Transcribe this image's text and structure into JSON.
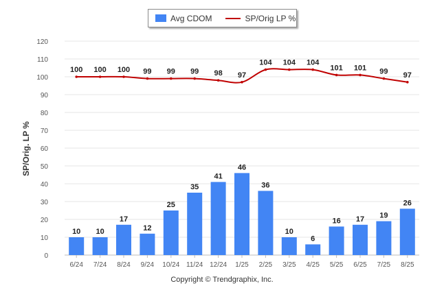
{
  "chart_data": {
    "type": "bar",
    "categories": [
      "6/24",
      "7/24",
      "8/24",
      "9/24",
      "10/24",
      "11/24",
      "12/24",
      "1/25",
      "2/25",
      "3/25",
      "4/25",
      "5/25",
      "6/25",
      "7/25",
      "8/25"
    ],
    "series": [
      {
        "name": "Avg CDOM",
        "kind": "bar",
        "color": "#4285f4",
        "values": [
          10,
          10,
          17,
          12,
          25,
          35,
          41,
          46,
          36,
          10,
          6,
          16,
          17,
          19,
          26
        ]
      },
      {
        "name": "SP/Orig LP %",
        "kind": "line",
        "color": "#c00000",
        "values": [
          100,
          100,
          100,
          99,
          99,
          99,
          98,
          97,
          104,
          104,
          104,
          101,
          101,
          99,
          97
        ]
      }
    ],
    "ylabel": "SP/Orig. LP %",
    "ylim": [
      0,
      120
    ],
    "yticks": [
      0,
      10,
      20,
      30,
      40,
      50,
      60,
      70,
      80,
      90,
      100,
      110,
      120
    ],
    "grid": true,
    "legend": "top-center"
  },
  "footer": {
    "copyright": "Copyright © Trendgraphix, Inc."
  }
}
